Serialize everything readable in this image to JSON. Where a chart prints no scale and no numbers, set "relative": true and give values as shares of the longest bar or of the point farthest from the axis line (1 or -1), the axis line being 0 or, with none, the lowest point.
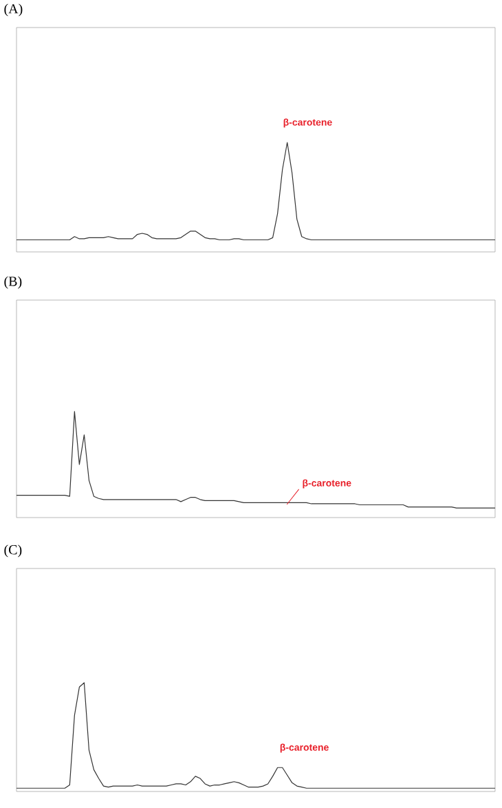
{
  "chart_data": [
    {
      "type": "line",
      "title": "(A)",
      "relative": true,
      "color": "#333333",
      "annotations": [
        "β-carotene"
      ],
      "categories": [
        null,
        null,
        null,
        null,
        null,
        null,
        null,
        null,
        null,
        null,
        null,
        null,
        null,
        null,
        null,
        null,
        null,
        null,
        null,
        null,
        null,
        null,
        null,
        null,
        null,
        null,
        null,
        null,
        null,
        null,
        null,
        null,
        null,
        null,
        null,
        null,
        null,
        null,
        null,
        null,
        null,
        null,
        null,
        null,
        null,
        null,
        null,
        null,
        null,
        null,
        null,
        null,
        null,
        null,
        null,
        null,
        null,
        null,
        null,
        null,
        null,
        null,
        null,
        null,
        null,
        null,
        null,
        null,
        null,
        null,
        null,
        null,
        null,
        null,
        null,
        null,
        null,
        null,
        null,
        null,
        null,
        null,
        null,
        null,
        null,
        null,
        null,
        null,
        null,
        null,
        null,
        null,
        null,
        null,
        null,
        null,
        null,
        null,
        null,
        null
      ],
      "values": [
        0.11,
        0.11,
        0.11,
        0.11,
        0.11,
        0.11,
        0.11,
        0.11,
        0.11,
        0.11,
        0.11,
        0.11,
        0.14,
        0.12,
        0.12,
        0.13,
        0.13,
        0.13,
        0.13,
        0.14,
        0.13,
        0.12,
        0.12,
        0.12,
        0.12,
        0.16,
        0.17,
        0.16,
        0.13,
        0.12,
        0.12,
        0.12,
        0.12,
        0.12,
        0.13,
        0.16,
        0.19,
        0.19,
        0.16,
        0.13,
        0.12,
        0.12,
        0.11,
        0.11,
        0.11,
        0.12,
        0.12,
        0.11,
        0.11,
        0.11,
        0.11,
        0.11,
        0.11,
        0.13,
        0.35,
        0.75,
        1,
        0.72,
        0.3,
        0.14,
        0.12,
        0.11,
        0.11,
        0.11,
        0.11,
        0.11,
        0.11,
        0.11,
        0.11,
        0.11,
        0.11,
        0.11,
        0.11,
        0.11,
        0.11,
        0.11,
        0.11,
        0.11,
        0.11,
        0.11,
        0.11,
        0.11,
        0.11,
        0.11,
        0.11,
        0.11,
        0.11,
        0.11,
        0.11,
        0.11,
        0.11,
        0.11,
        0.11,
        0.11,
        0.11,
        0.11,
        0.11,
        0.11,
        0.11,
        0.11
      ]
    },
    {
      "type": "line",
      "title": "(B)",
      "relative": true,
      "color": "#333333",
      "annotations": [
        "β-carotene"
      ],
      "categories": [
        null,
        null,
        null,
        null,
        null,
        null,
        null,
        null,
        null,
        null,
        null,
        null,
        null,
        null,
        null,
        null,
        null,
        null,
        null,
        null,
        null,
        null,
        null,
        null,
        null,
        null,
        null,
        null,
        null,
        null,
        null,
        null,
        null,
        null,
        null,
        null,
        null,
        null,
        null,
        null,
        null,
        null,
        null,
        null,
        null,
        null,
        null,
        null,
        null,
        null,
        null,
        null,
        null,
        null,
        null,
        null,
        null,
        null,
        null,
        null,
        null,
        null,
        null,
        null,
        null,
        null,
        null,
        null,
        null,
        null,
        null,
        null,
        null,
        null,
        null,
        null,
        null,
        null,
        null,
        null,
        null,
        null,
        null,
        null,
        null,
        null,
        null,
        null,
        null,
        null,
        null,
        null,
        null,
        null,
        null,
        null,
        null,
        null,
        null,
        null
      ],
      "values": [
        0.21,
        0.21,
        0.21,
        0.21,
        0.21,
        0.21,
        0.21,
        0.21,
        0.21,
        0.21,
        0.21,
        0.2,
        1,
        0.5,
        0.78,
        0.35,
        0.2,
        0.18,
        0.17,
        0.17,
        0.17,
        0.17,
        0.17,
        0.17,
        0.17,
        0.17,
        0.17,
        0.17,
        0.17,
        0.17,
        0.17,
        0.17,
        0.17,
        0.17,
        0.15,
        0.17,
        0.19,
        0.19,
        0.17,
        0.16,
        0.16,
        0.16,
        0.16,
        0.16,
        0.16,
        0.16,
        0.15,
        0.14,
        0.14,
        0.14,
        0.14,
        0.14,
        0.14,
        0.14,
        0.14,
        0.14,
        0.14,
        0.14,
        0.14,
        0.14,
        0.14,
        0.13,
        0.13,
        0.13,
        0.13,
        0.13,
        0.13,
        0.13,
        0.13,
        0.13,
        0.13,
        0.12,
        0.12,
        0.12,
        0.12,
        0.12,
        0.12,
        0.12,
        0.12,
        0.12,
        0.12,
        0.1,
        0.1,
        0.1,
        0.1,
        0.1,
        0.1,
        0.1,
        0.1,
        0.1,
        0.1,
        0.09,
        0.09,
        0.09,
        0.09,
        0.09,
        0.09,
        0.09,
        0.09,
        0.09
      ]
    },
    {
      "type": "line",
      "title": "(C)",
      "relative": true,
      "color": "#333333",
      "annotations": [
        "β-carotene"
      ],
      "categories": [
        null,
        null,
        null,
        null,
        null,
        null,
        null,
        null,
        null,
        null,
        null,
        null,
        null,
        null,
        null,
        null,
        null,
        null,
        null,
        null,
        null,
        null,
        null,
        null,
        null,
        null,
        null,
        null,
        null,
        null,
        null,
        null,
        null,
        null,
        null,
        null,
        null,
        null,
        null,
        null,
        null,
        null,
        null,
        null,
        null,
        null,
        null,
        null,
        null,
        null,
        null,
        null,
        null,
        null,
        null,
        null,
        null,
        null,
        null,
        null,
        null,
        null,
        null,
        null,
        null,
        null,
        null,
        null,
        null,
        null,
        null,
        null,
        null,
        null,
        null,
        null,
        null,
        null,
        null,
        null,
        null,
        null,
        null,
        null,
        null,
        null,
        null,
        null,
        null,
        null,
        null,
        null,
        null,
        null,
        null,
        null,
        null,
        null,
        null,
        null
      ],
      "values": [
        0.03,
        0.03,
        0.03,
        0.03,
        0.03,
        0.03,
        0.03,
        0.03,
        0.03,
        0.03,
        0.03,
        0.06,
        0.7,
        0.96,
        1,
        0.38,
        0.2,
        0.12,
        0.05,
        0.04,
        0.05,
        0.05,
        0.05,
        0.05,
        0.05,
        0.06,
        0.05,
        0.05,
        0.05,
        0.05,
        0.05,
        0.05,
        0.06,
        0.07,
        0.07,
        0.06,
        0.09,
        0.14,
        0.12,
        0.07,
        0.05,
        0.06,
        0.06,
        0.07,
        0.08,
        0.09,
        0.08,
        0.06,
        0.04,
        0.04,
        0.04,
        0.05,
        0.07,
        0.14,
        0.22,
        0.22,
        0.15,
        0.08,
        0.05,
        0.04,
        0.03,
        0.03,
        0.03,
        0.03,
        0.03,
        0.03,
        0.03,
        0.03,
        0.03,
        0.03,
        0.03,
        0.03,
        0.03,
        0.03,
        0.03,
        0.03,
        0.03,
        0.03,
        0.03,
        0.03,
        0.03,
        0.03,
        0.03,
        0.03,
        0.03,
        0.03,
        0.03,
        0.03,
        0.03,
        0.03,
        0.03,
        0.03,
        0.03,
        0.03,
        0.03,
        0.03,
        0.03,
        0.03,
        0.03,
        0.03
      ]
    }
  ]
}
